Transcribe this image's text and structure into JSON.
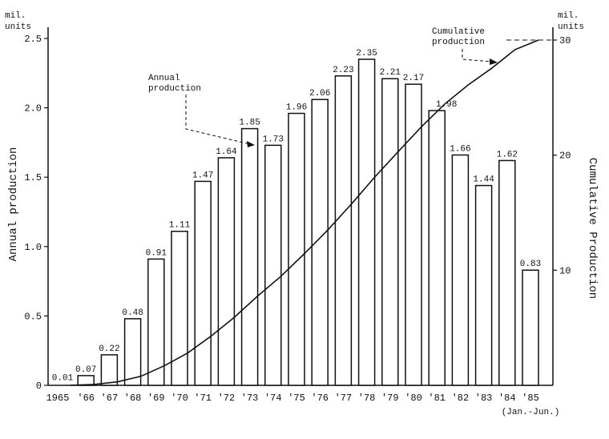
{
  "chart_data": {
    "type": "bar",
    "title": "",
    "categories": [
      "1965",
      "'66",
      "'67",
      "'68",
      "'69",
      "'70",
      "'71",
      "'72",
      "'73",
      "'74",
      "'75",
      "'76",
      "'77",
      "'78",
      "'79",
      "'80",
      "'81",
      "'82",
      "'83",
      "'84",
      "'85"
    ],
    "x_note": "(Jan.-Jun.)",
    "series": [
      {
        "name": "Annual production",
        "type": "bar",
        "axis": "left",
        "values": [
          0.01,
          0.07,
          0.22,
          0.48,
          0.91,
          1.11,
          1.47,
          1.64,
          1.85,
          1.73,
          1.96,
          2.06,
          2.23,
          2.35,
          2.21,
          2.17,
          1.98,
          1.66,
          1.44,
          1.62,
          0.83
        ],
        "labels": [
          "0.01",
          "0.07",
          "0.22",
          "0.48",
          "0.91",
          "1.11",
          "1.47",
          "1.64",
          "1.85",
          "1.73",
          "1.96",
          "2.06",
          "2.23",
          "2.35",
          "2.21",
          "2.17",
          "1.98",
          "1.66",
          "1.44",
          "1.62",
          "0.83"
        ]
      },
      {
        "name": "Cumulative production",
        "type": "line",
        "axis": "right",
        "values": [
          0.01,
          0.08,
          0.3,
          0.78,
          1.69,
          2.8,
          4.27,
          5.91,
          7.76,
          9.49,
          11.45,
          13.51,
          15.74,
          18.09,
          20.3,
          22.47,
          24.45,
          26.11,
          27.55,
          29.17,
          30.0
        ]
      }
    ],
    "ylabel": "Annual production",
    "ylabel_unit": "mil.\nunits",
    "ylim": [
      0,
      2.5
    ],
    "yticks": [
      "0",
      "0.5",
      "1.0",
      "1.5",
      "2.0",
      "2.5"
    ],
    "y2label": "Cumulative Production",
    "y2label_unit": "mil.\nunits",
    "y2lim": [
      0,
      30
    ],
    "y2ticks": [
      "10",
      "20",
      "30"
    ],
    "annotations": [
      {
        "text": "Annual\nproduction",
        "points_to": "'73 bar"
      },
      {
        "text": "Cumulative\nproduction",
        "points_to": "cumulative line near '84"
      }
    ],
    "grid": false,
    "legend": "none (callout annotations)"
  },
  "axes": {
    "left_unit_line1": "mil.",
    "left_unit_line2": "units",
    "right_unit_line1": "mil.",
    "right_unit_line2": "units",
    "left_title": "Annual production",
    "right_title": "Cumulative Production",
    "x_note": "(Jan.-Jun.)"
  },
  "annotations": {
    "annual_line1": "Annual",
    "annual_line2": "production",
    "cumulative_line1": "Cumulative",
    "cumulative_line2": "production"
  }
}
